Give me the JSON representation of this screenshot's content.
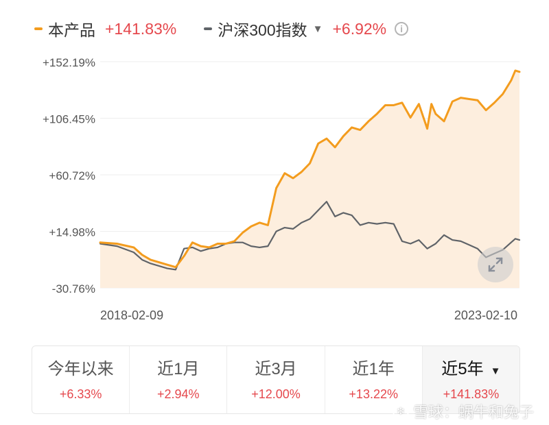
{
  "legend": {
    "product": {
      "name": "本产品",
      "return": "+141.83%",
      "color": "#f39c1e"
    },
    "index": {
      "name": "沪深300指数",
      "return": "+6.92%",
      "color": "#5f6368",
      "caret": "▼"
    },
    "info_icon": "i"
  },
  "chart_data": {
    "type": "line",
    "x_start_label": "2018-02-09",
    "x_end_label": "2023-02-10",
    "yticks": [
      "+152.19%",
      "+106.45%",
      "+60.72%",
      "+14.98%",
      "-30.76%"
    ],
    "ylim": [
      -30.76,
      152.19
    ],
    "area_fill": "#fdeede",
    "series": [
      {
        "name": "本产品",
        "color": "#f39c1e",
        "x": [
          0,
          0.04,
          0.08,
          0.1,
          0.12,
          0.16,
          0.18,
          0.2,
          0.22,
          0.24,
          0.26,
          0.28,
          0.3,
          0.32,
          0.34,
          0.36,
          0.38,
          0.4,
          0.42,
          0.44,
          0.46,
          0.48,
          0.5,
          0.52,
          0.54,
          0.56,
          0.58,
          0.6,
          0.62,
          0.64,
          0.66,
          0.68,
          0.7,
          0.72,
          0.74,
          0.76,
          0.78,
          0.79,
          0.8,
          0.82,
          0.84,
          0.86,
          0.88,
          0.9,
          0.92,
          0.94,
          0.96,
          0.98,
          0.99,
          1.0
        ],
        "values": [
          6,
          5,
          2,
          -4,
          -8,
          -12,
          -14,
          -5,
          6,
          3,
          2,
          5,
          5,
          7,
          14,
          19,
          22,
          20,
          50,
          62,
          58,
          63,
          70,
          86,
          90,
          83,
          92,
          99,
          97,
          104,
          110,
          117,
          117,
          119,
          107,
          118,
          98,
          118,
          110,
          104,
          120,
          123,
          122,
          121,
          113,
          119,
          126,
          137,
          145,
          144
        ]
      },
      {
        "name": "沪深300指数",
        "color": "#5f6368",
        "x": [
          0,
          0.04,
          0.08,
          0.1,
          0.12,
          0.16,
          0.18,
          0.2,
          0.22,
          0.24,
          0.26,
          0.28,
          0.3,
          0.32,
          0.34,
          0.36,
          0.38,
          0.4,
          0.42,
          0.44,
          0.46,
          0.48,
          0.5,
          0.52,
          0.54,
          0.56,
          0.58,
          0.6,
          0.62,
          0.64,
          0.66,
          0.68,
          0.7,
          0.72,
          0.74,
          0.76,
          0.78,
          0.8,
          0.82,
          0.84,
          0.86,
          0.88,
          0.9,
          0.92,
          0.94,
          0.96,
          0.98,
          0.99,
          1.0
        ],
        "values": [
          5,
          3,
          -2,
          -8,
          -11,
          -15,
          -16,
          1,
          2,
          -1,
          1,
          2,
          5,
          6,
          6,
          3,
          2,
          3,
          15,
          18,
          17,
          22,
          25,
          32,
          39,
          27,
          30,
          28,
          20,
          22,
          21,
          22,
          21,
          7,
          5,
          8,
          1,
          5,
          12,
          8,
          7,
          4,
          1,
          -6,
          -3,
          0,
          6,
          9,
          8
        ]
      }
    ],
    "grid": true
  },
  "tabs": [
    {
      "label": "今年以来",
      "value": "+6.33%",
      "active": false
    },
    {
      "label": "近1月",
      "value": "+2.94%",
      "active": false
    },
    {
      "label": "近3月",
      "value": "+12.00%",
      "active": false
    },
    {
      "label": "近1年",
      "value": "+13.22%",
      "active": false
    },
    {
      "label": "近5年",
      "value": "+141.83%",
      "active": true,
      "caret": "▼"
    }
  ],
  "watermark": "雪球：蜗牛和兔子"
}
